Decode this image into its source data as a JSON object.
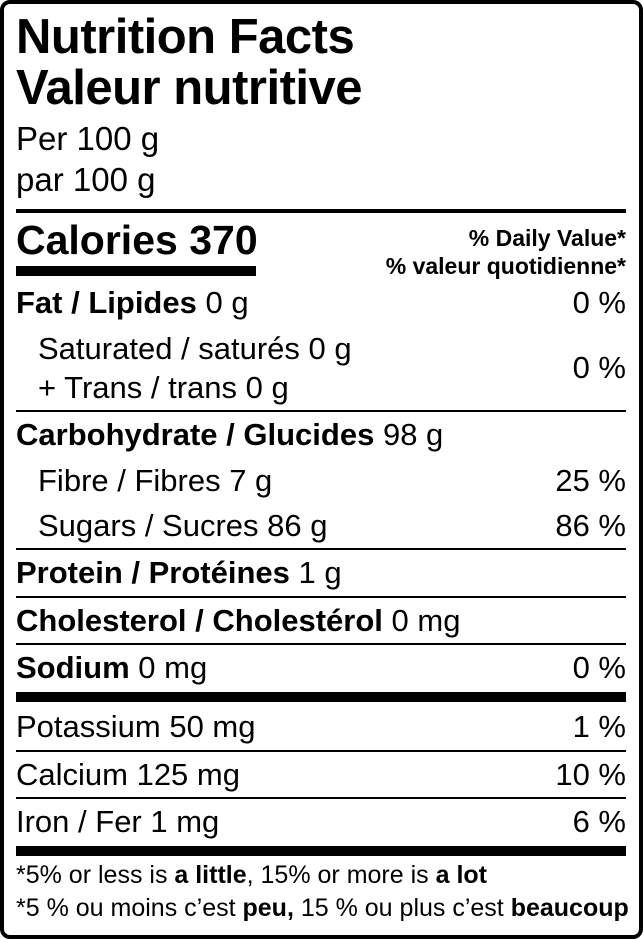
{
  "label": {
    "title_en": "Nutrition Facts",
    "title_fr": "Valeur nutritive",
    "serving_en": "Per 100 g",
    "serving_fr": "par 100 g",
    "calories_label": "Calories",
    "calories_value": "370",
    "dv_header_en": "% Daily Value*",
    "dv_header_fr": "% valeur quotidienne*",
    "nutrients": {
      "fat": {
        "name": "Fat / Lipides",
        "amount": "0 g",
        "dv": "0 %"
      },
      "saturated_line": "Saturated / saturés 0 g",
      "trans_line": "+ Trans / trans 0 g",
      "sat_trans_dv": "0 %",
      "carbohydrate": {
        "name": "Carbohydrate / Glucides",
        "amount": "98 g"
      },
      "fibre": {
        "line": "Fibre / Fibres 7 g",
        "dv": "25 %"
      },
      "sugars": {
        "line": "Sugars / Sucres 86 g",
        "dv": "86 %"
      },
      "protein": {
        "name": "Protein / Protéines",
        "amount": "1 g"
      },
      "cholesterol": {
        "name": "Cholesterol / Cholestérol",
        "amount": "0 mg"
      },
      "sodium": {
        "name": "Sodium",
        "amount": "0 mg",
        "dv": "0 %"
      },
      "potassium": {
        "line": "Potassium 50 mg",
        "dv": "1 %"
      },
      "calcium": {
        "line": "Calcium 125 mg",
        "dv": "10 %"
      },
      "iron": {
        "line": "Iron / Fer 1 mg",
        "dv": "6 %"
      }
    },
    "footnote_en": {
      "pre": "*5% or less is ",
      "bold1": "a little",
      "mid": ", 15% or more is ",
      "bold2": "a lot"
    },
    "footnote_fr": {
      "pre": "*5 % ou moins c’est ",
      "bold1": "peu,",
      "mid": " 15 % ou plus c’est ",
      "bold2": "beaucoup"
    },
    "colors": {
      "text": "#000000",
      "background": "#ffffff",
      "rule": "#000000"
    }
  }
}
